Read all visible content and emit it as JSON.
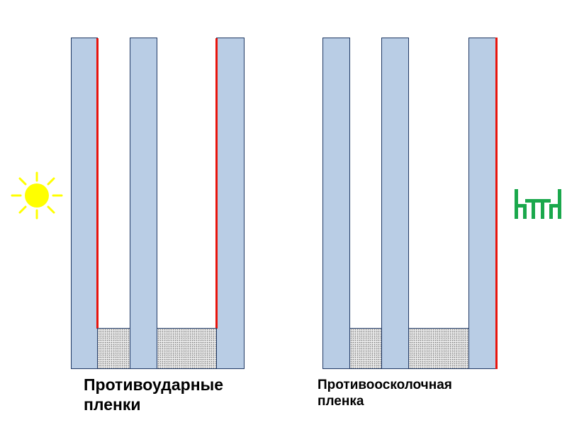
{
  "diagram": {
    "left_unit": {
      "caption_line1": "Противоударные",
      "caption_line2": "пленки"
    },
    "right_unit": {
      "caption_line1": "Противоосколочная",
      "caption_line2": "пленка"
    },
    "icons": {
      "left": "sun-icon",
      "right": "furniture-icon"
    },
    "colors": {
      "glass": "#b9cde5",
      "glass_outline": "#1f3864",
      "film": "#e8140c",
      "sun": "#ffff00",
      "furniture": "#1aa84c"
    }
  }
}
